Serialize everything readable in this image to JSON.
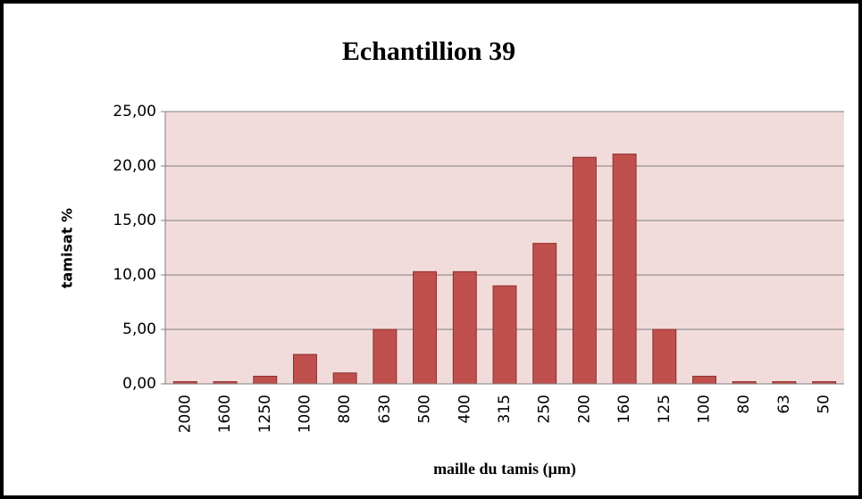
{
  "chart_data": {
    "type": "bar",
    "title": "Echantillion 39",
    "x_label": "maille du tamis (µm)",
    "y_label": "tamisat %",
    "categories": [
      "2000",
      "1600",
      "1250",
      "1000",
      "800",
      "630",
      "500",
      "400",
      "315",
      "250",
      "200",
      "160",
      "125",
      "100",
      "80",
      "63",
      "50"
    ],
    "values": [
      0.2,
      0.2,
      0.7,
      2.7,
      1.0,
      5.0,
      10.3,
      10.3,
      9.0,
      12.9,
      20.8,
      21.1,
      5.0,
      0.7,
      0.2,
      0.2,
      0.2
    ],
    "color": "#c0504d",
    "ylim": [
      0,
      25
    ],
    "yticks": [
      {
        "value": 0,
        "label": "0,00"
      },
      {
        "value": 5,
        "label": "5,00"
      },
      {
        "value": 10,
        "label": "10,00"
      },
      {
        "value": 15,
        "label": "15,00"
      },
      {
        "value": 20,
        "label": "20,00"
      },
      {
        "value": 25,
        "label": "25,00"
      }
    ],
    "grid": true
  }
}
